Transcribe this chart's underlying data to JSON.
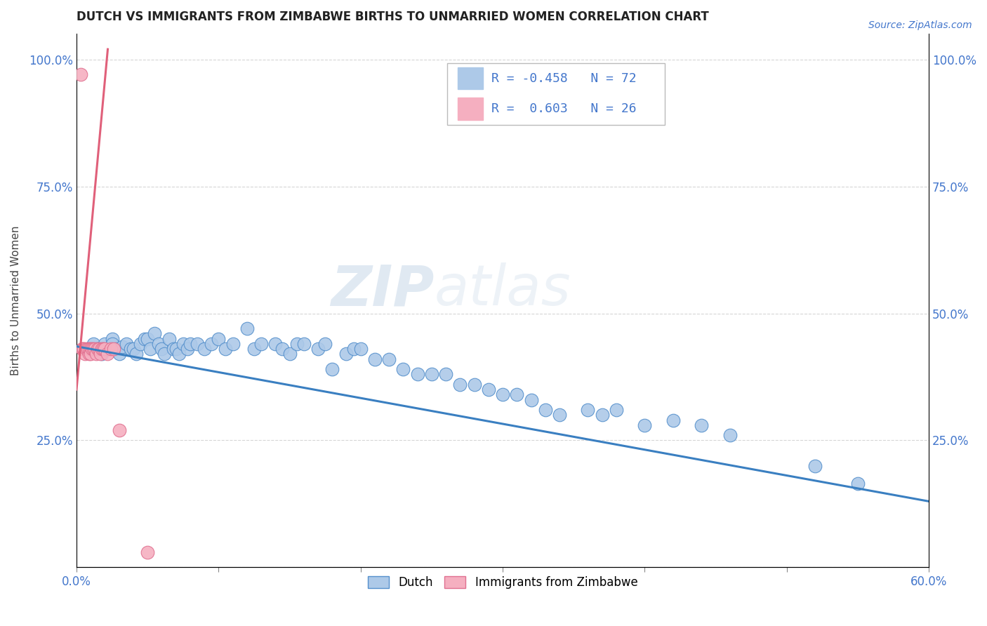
{
  "title": "DUTCH VS IMMIGRANTS FROM ZIMBABWE BIRTHS TO UNMARRIED WOMEN CORRELATION CHART",
  "source": "Source: ZipAtlas.com",
  "ylabel": "Births to Unmarried Women",
  "xlim": [
    0.0,
    0.6
  ],
  "ylim": [
    0.0,
    1.05
  ],
  "xticks": [
    0.0,
    0.1,
    0.2,
    0.3,
    0.4,
    0.5,
    0.6
  ],
  "xticklabels": [
    "0.0%",
    "",
    "",
    "",
    "",
    "",
    "60.0%"
  ],
  "yticks": [
    0.0,
    0.25,
    0.5,
    0.75,
    1.0
  ],
  "yticklabels_left": [
    "",
    "25.0%",
    "50.0%",
    "75.0%",
    "100.0%"
  ],
  "yticklabels_right": [
    "",
    "25.0%",
    "50.0%",
    "75.0%",
    "100.0%"
  ],
  "blue_color": "#adc9e8",
  "pink_color": "#f5afc0",
  "blue_edge_color": "#5590cc",
  "pink_edge_color": "#e07090",
  "blue_line_color": "#3a7fc1",
  "pink_line_color": "#e0607a",
  "legend_r_dutch": "-0.458",
  "legend_n_dutch": "72",
  "legend_r_zimb": "0.603",
  "legend_n_zimb": "26",
  "watermark_zip": "ZIP",
  "watermark_atlas": "atlas",
  "tick_color": "#4477cc",
  "dutch_x": [
    0.012,
    0.015,
    0.018,
    0.02,
    0.022,
    0.025,
    0.025,
    0.028,
    0.03,
    0.032,
    0.035,
    0.038,
    0.04,
    0.042,
    0.045,
    0.048,
    0.05,
    0.052,
    0.055,
    0.058,
    0.06,
    0.062,
    0.065,
    0.068,
    0.07,
    0.072,
    0.075,
    0.078,
    0.08,
    0.085,
    0.09,
    0.095,
    0.1,
    0.105,
    0.11,
    0.12,
    0.125,
    0.13,
    0.14,
    0.145,
    0.15,
    0.155,
    0.16,
    0.17,
    0.175,
    0.18,
    0.19,
    0.195,
    0.2,
    0.21,
    0.22,
    0.23,
    0.24,
    0.25,
    0.26,
    0.27,
    0.28,
    0.29,
    0.3,
    0.31,
    0.32,
    0.33,
    0.34,
    0.36,
    0.37,
    0.38,
    0.4,
    0.42,
    0.44,
    0.46,
    0.52,
    0.55
  ],
  "dutch_y": [
    0.44,
    0.43,
    0.42,
    0.44,
    0.43,
    0.45,
    0.44,
    0.43,
    0.42,
    0.435,
    0.44,
    0.43,
    0.43,
    0.42,
    0.44,
    0.45,
    0.45,
    0.43,
    0.46,
    0.44,
    0.43,
    0.42,
    0.45,
    0.43,
    0.43,
    0.42,
    0.44,
    0.43,
    0.44,
    0.44,
    0.43,
    0.44,
    0.45,
    0.43,
    0.44,
    0.47,
    0.43,
    0.44,
    0.44,
    0.43,
    0.42,
    0.44,
    0.44,
    0.43,
    0.44,
    0.39,
    0.42,
    0.43,
    0.43,
    0.41,
    0.41,
    0.39,
    0.38,
    0.38,
    0.38,
    0.36,
    0.36,
    0.35,
    0.34,
    0.34,
    0.33,
    0.31,
    0.3,
    0.31,
    0.3,
    0.31,
    0.28,
    0.29,
    0.28,
    0.26,
    0.2,
    0.165
  ],
  "zimb_x": [
    0.003,
    0.004,
    0.005,
    0.005,
    0.006,
    0.007,
    0.008,
    0.009,
    0.009,
    0.01,
    0.01,
    0.011,
    0.012,
    0.013,
    0.014,
    0.015,
    0.016,
    0.017,
    0.018,
    0.019,
    0.02,
    0.022,
    0.024,
    0.026,
    0.03,
    0.05
  ],
  "zimb_y": [
    0.97,
    0.43,
    0.43,
    0.43,
    0.42,
    0.43,
    0.43,
    0.42,
    0.43,
    0.43,
    0.42,
    0.43,
    0.43,
    0.43,
    0.42,
    0.43,
    0.43,
    0.42,
    0.43,
    0.43,
    0.43,
    0.42,
    0.43,
    0.43,
    0.27,
    0.03
  ],
  "dutch_line_x0": 0.0,
  "dutch_line_y0": 0.435,
  "dutch_line_x1": 0.6,
  "dutch_line_y1": 0.13,
  "zimb_line_x0": 0.0,
  "zimb_line_y0": 0.35,
  "zimb_line_x1": 0.022,
  "zimb_line_y1": 1.02
}
